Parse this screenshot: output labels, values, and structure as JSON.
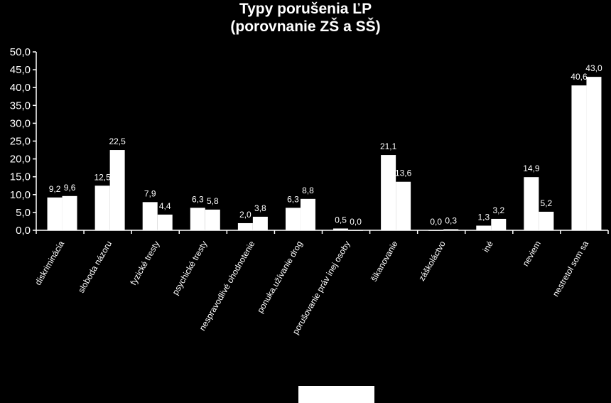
{
  "chart_data": {
    "type": "bar",
    "title": "Typy porušenia ĽP",
    "subtitle": "(porovnanie ZŠ a SŠ)",
    "ylim": [
      0,
      50
    ],
    "yticks": [
      "0,0",
      "5,0",
      "10,0",
      "15,0",
      "20,0",
      "25,0",
      "30,0",
      "35,0",
      "40,0",
      "45,0",
      "50,0"
    ],
    "grid": false,
    "categories": [
      "diskriminácia",
      "sloboda názoru",
      "fyzické tresty",
      "psychické tresty",
      "nespravodlivé ohodnotenie",
      "ponuka,užívanie drog",
      "porušovanie práv inej osoby",
      "šikanovanie",
      "záškoláctvo",
      "iné",
      "neviem",
      "nestretol som sa"
    ],
    "series": [
      {
        "values": [
          9.2,
          12.5,
          7.9,
          6.3,
          2.0,
          6.3,
          0.5,
          21.1,
          0.0,
          1.3,
          14.9,
          40.6
        ],
        "labels": [
          "9,2",
          "12,5",
          "7,9",
          "6,3",
          "2,0",
          "6,3",
          "0,5",
          "21,1",
          "0,0",
          "1,3",
          "14,9",
          "40,6"
        ]
      },
      {
        "values": [
          9.6,
          22.5,
          4.4,
          5.8,
          3.8,
          8.8,
          0.0,
          13.6,
          0.3,
          3.2,
          5.2,
          43.0
        ],
        "labels": [
          "9,6",
          "22,5",
          "4,4",
          "5,8",
          "3,8",
          "8,8",
          "0,0",
          "13,6",
          "0,3",
          "3,2",
          "5,2",
          "43,0"
        ]
      }
    ],
    "colors": {
      "background": "#000000",
      "bars": "#ffffff",
      "text": "#ffffff"
    }
  }
}
